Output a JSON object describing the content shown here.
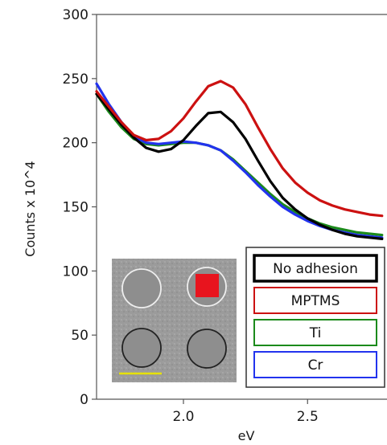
{
  "chart_data": {
    "type": "line",
    "xlabel": "eV",
    "ylabel": "Counts x 10^4",
    "xlim": [
      1.65,
      2.82
    ],
    "ylim": [
      0,
      300
    ],
    "x_ticks": [
      "2.0",
      "2.5"
    ],
    "y_ticks": [
      "0",
      "50",
      "100",
      "150",
      "200",
      "250",
      "300"
    ],
    "legend_position": "bottom-right",
    "series": [
      {
        "name": "No adhesion",
        "color": "#000000",
        "x": [
          1.65,
          1.7,
          1.75,
          1.8,
          1.85,
          1.9,
          1.95,
          2.0,
          2.05,
          2.1,
          2.15,
          2.2,
          2.25,
          2.3,
          2.35,
          2.4,
          2.45,
          2.5,
          2.55,
          2.6,
          2.65,
          2.7,
          2.75,
          2.8
        ],
        "y": [
          238,
          226,
          214,
          204,
          196,
          193,
          195,
          202,
          213,
          223,
          224,
          216,
          203,
          186,
          170,
          157,
          148,
          141,
          136,
          132,
          129,
          127,
          126,
          125
        ]
      },
      {
        "name": "MPTMS",
        "color": "#cc1111",
        "x": [
          1.65,
          1.7,
          1.75,
          1.8,
          1.85,
          1.9,
          1.95,
          2.0,
          2.05,
          2.1,
          2.15,
          2.2,
          2.25,
          2.3,
          2.35,
          2.4,
          2.45,
          2.5,
          2.55,
          2.6,
          2.65,
          2.7,
          2.75,
          2.8
        ],
        "y": [
          240,
          228,
          216,
          206,
          202,
          203,
          209,
          219,
          232,
          244,
          248,
          243,
          230,
          212,
          195,
          180,
          169,
          161,
          155,
          151,
          148,
          146,
          144,
          143
        ]
      },
      {
        "name": "Ti",
        "color": "#1b8a1b",
        "x": [
          1.65,
          1.7,
          1.75,
          1.8,
          1.85,
          1.9,
          1.95,
          2.0,
          2.05,
          2.1,
          2.15,
          2.2,
          2.25,
          2.3,
          2.35,
          2.4,
          2.45,
          2.5,
          2.55,
          2.6,
          2.65,
          2.7,
          2.75,
          2.8
        ],
        "y": [
          238,
          224,
          212,
          203,
          199,
          198,
          199,
          200,
          200,
          198,
          194,
          187,
          178,
          169,
          160,
          152,
          146,
          141,
          137,
          134,
          132,
          130,
          129,
          128
        ]
      },
      {
        "name": "Cr",
        "color": "#2233ee",
        "x": [
          1.65,
          1.7,
          1.75,
          1.8,
          1.85,
          1.9,
          1.95,
          2.0,
          2.05,
          2.1,
          2.15,
          2.2,
          2.25,
          2.3,
          2.35,
          2.4,
          2.45,
          2.5,
          2.55,
          2.6,
          2.65,
          2.7,
          2.75,
          2.8
        ],
        "y": [
          246,
          230,
          216,
          205,
          200,
          199,
          200,
          201,
          200,
          198,
          194,
          186,
          177,
          167,
          158,
          150,
          144,
          139,
          135,
          132,
          130,
          128,
          127,
          126
        ]
      }
    ]
  },
  "legend": {
    "items": [
      {
        "label": "No adhesion",
        "border": "#000000",
        "bold": true
      },
      {
        "label": "MPTMS",
        "border": "#cc1111",
        "bold": false
      },
      {
        "label": "Ti",
        "border": "#1b8a1b",
        "bold": false
      },
      {
        "label": "Cr",
        "border": "#2233ee",
        "bold": false
      }
    ]
  },
  "inset": {
    "highlight_color": "#e8141e",
    "scale_bar_color": "#e6e200"
  }
}
